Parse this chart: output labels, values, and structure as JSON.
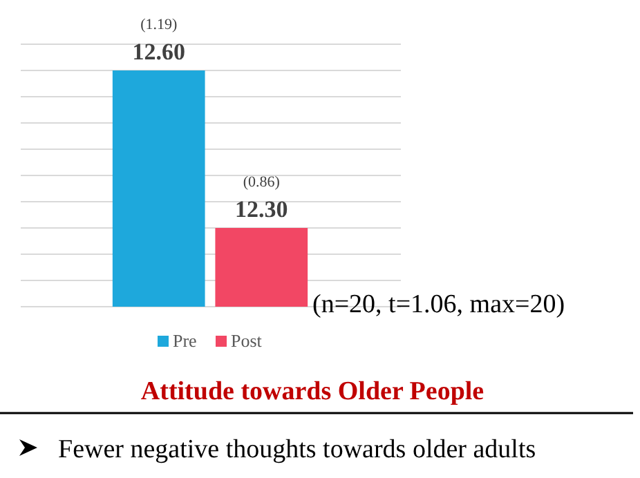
{
  "chart_data": {
    "type": "bar",
    "title": "Attitude towards Older People",
    "categories": [
      null,
      null
    ],
    "stacked": true,
    "series": [
      {
        "name": "Pre",
        "color": "#1ea8dc",
        "values": [
          12.6,
          null
        ],
        "value_labels": [
          "12.60",
          null
        ]
      },
      {
        "name": "Post",
        "color": "#f24764",
        "values": [
          null,
          12.3
        ],
        "value_labels": [
          null,
          "12.30"
        ]
      }
    ],
    "ylim": [
      12.15,
      12.65
    ],
    "yticks": [
      {
        "value": 12.15,
        "label": null
      },
      {
        "value": 12.2,
        "label": null
      },
      {
        "value": 12.25,
        "label": null
      },
      {
        "value": 12.3,
        "label": null
      },
      {
        "value": 12.35,
        "label": null
      },
      {
        "value": 12.4,
        "label": null
      },
      {
        "value": 12.45,
        "label": null
      },
      {
        "value": 12.5,
        "label": null
      },
      {
        "value": 12.55,
        "label": null
      },
      {
        "value": 12.6,
        "label": null
      },
      {
        "value": 12.65,
        "label": null
      }
    ],
    "grid": "y",
    "legend": "bottom",
    "annotations": [
      "(1.19)",
      "(0.86)",
      "(n=20, t=1.06, max=20)",
      "Fewer negative thoughts towards older adults"
    ]
  }
}
